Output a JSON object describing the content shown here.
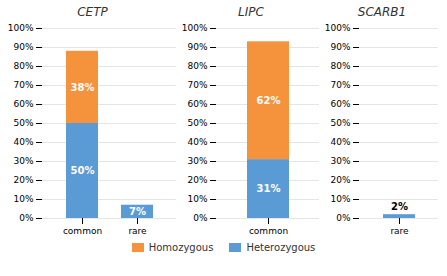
{
  "chart_data": [
    {
      "type": "bar",
      "title": "CETP",
      "categories": [
        "common",
        "rare"
      ],
      "stacked": true,
      "data_labels": true,
      "series": [
        {
          "name": "Homozygous",
          "color": "#F4933B",
          "values": [
            38,
            0
          ],
          "value_labels": [
            "38%",
            null
          ]
        },
        {
          "name": "Heterozygous",
          "color": "#5B9BD5",
          "values": [
            50,
            7
          ],
          "value_labels": [
            "50%",
            "7%"
          ]
        }
      ],
      "ylim": [
        0,
        100
      ],
      "yticks": [
        {
          "value": 0,
          "label": "0%"
        },
        {
          "value": 10,
          "label": "10%"
        },
        {
          "value": 20,
          "label": "20%"
        },
        {
          "value": 30,
          "label": "30%"
        },
        {
          "value": 40,
          "label": "40%"
        },
        {
          "value": 50,
          "label": "50%"
        },
        {
          "value": 60,
          "label": "60%"
        },
        {
          "value": 70,
          "label": "70%"
        },
        {
          "value": 80,
          "label": "80%"
        },
        {
          "value": 90,
          "label": "90%"
        },
        {
          "value": 100,
          "label": "100%"
        }
      ],
      "grid": true,
      "legend": "bottom"
    },
    {
      "type": "bar",
      "title": "LIPC",
      "categories": [
        "common"
      ],
      "stacked": true,
      "data_labels": true,
      "series": [
        {
          "name": "Homozygous",
          "color": "#F4933B",
          "values": [
            62
          ],
          "value_labels": [
            "62%"
          ]
        },
        {
          "name": "Heterozygous",
          "color": "#5B9BD5",
          "values": [
            31
          ],
          "value_labels": [
            "31%"
          ]
        }
      ],
      "ylim": [
        0,
        100
      ],
      "yticks": [
        {
          "value": 0,
          "label": "0%"
        },
        {
          "value": 10,
          "label": "10%"
        },
        {
          "value": 20,
          "label": "20%"
        },
        {
          "value": 30,
          "label": "30%"
        },
        {
          "value": 40,
          "label": "40%"
        },
        {
          "value": 50,
          "label": "50%"
        },
        {
          "value": 60,
          "label": "60%"
        },
        {
          "value": 70,
          "label": "70%"
        },
        {
          "value": 80,
          "label": "80%"
        },
        {
          "value": 90,
          "label": "90%"
        },
        {
          "value": 100,
          "label": "100%"
        }
      ],
      "grid": true
    },
    {
      "type": "bar",
      "title": "SCARB1",
      "categories": [
        "rare"
      ],
      "stacked": true,
      "data_labels": true,
      "series": [
        {
          "name": "Homozygous",
          "color": "#F4933B",
          "values": [
            0
          ],
          "value_labels": [
            null
          ]
        },
        {
          "name": "Heterozygous",
          "color": "#5B9BD5",
          "values": [
            2
          ],
          "value_labels": [
            "2%"
          ]
        }
      ],
      "ylim": [
        0,
        100
      ],
      "yticks": [
        {
          "value": 0,
          "label": "0%"
        },
        {
          "value": 10,
          "label": "10%"
        },
        {
          "value": 20,
          "label": "20%"
        },
        {
          "value": 30,
          "label": "30%"
        },
        {
          "value": 40,
          "label": "40%"
        },
        {
          "value": 50,
          "label": "50%"
        },
        {
          "value": 60,
          "label": "60%"
        },
        {
          "value": 70,
          "label": "70%"
        },
        {
          "value": 80,
          "label": "80%"
        },
        {
          "value": 90,
          "label": "90%"
        },
        {
          "value": 100,
          "label": "100%"
        }
      ],
      "grid": true
    }
  ]
}
